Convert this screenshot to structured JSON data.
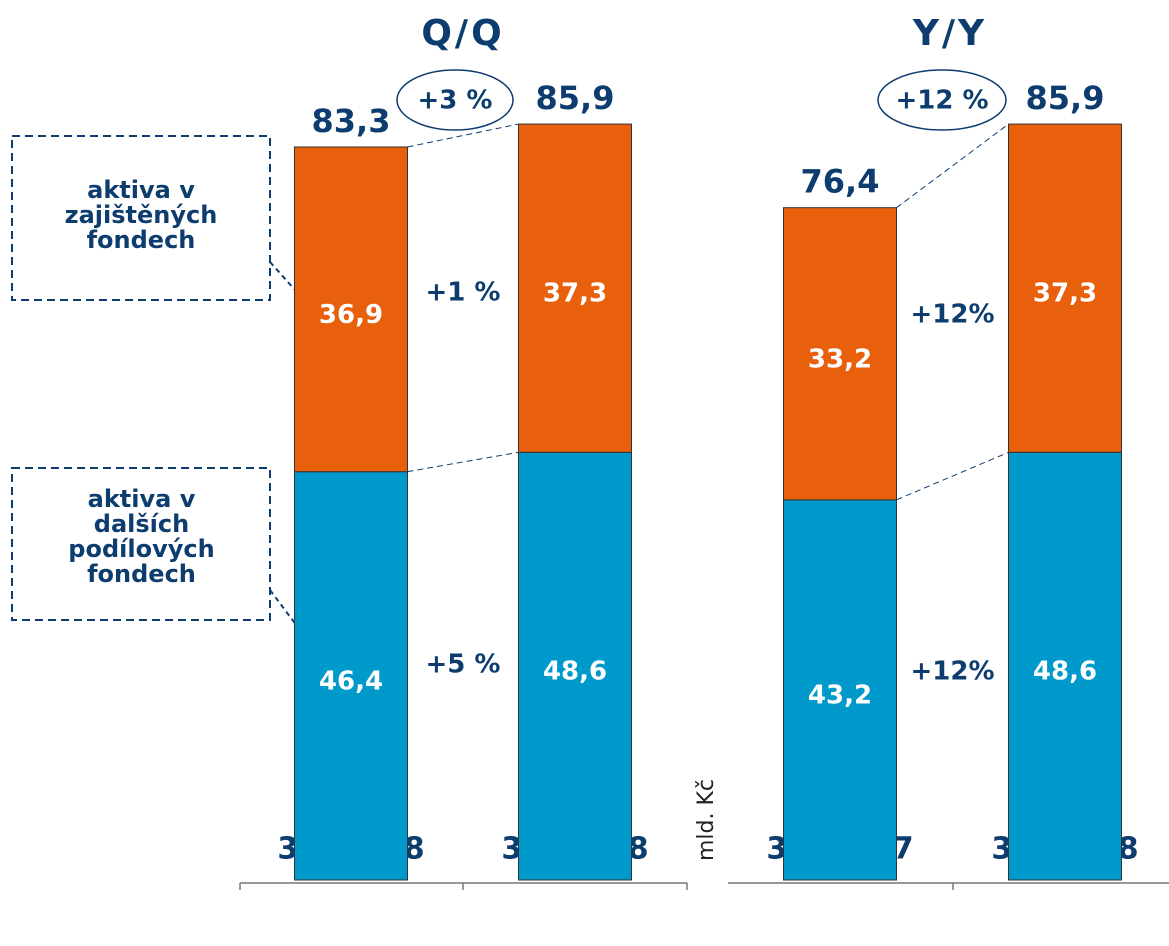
{
  "chart_data": [
    {
      "type": "stacked_bar",
      "title": "Q/Q",
      "categories": [
        "31/03/08",
        "30/06/08"
      ],
      "series": [
        {
          "name": "aktiva v dalších podílových fondech",
          "color": "#0099cc",
          "values": [
            46.4,
            48.6
          ],
          "value_labels": [
            "46,4",
            "48,6"
          ]
        },
        {
          "name": "aktiva v zajištěných fondech",
          "color": "#e8600c",
          "values": [
            36.9,
            37.3
          ],
          "value_labels": [
            "36,9",
            "37,3"
          ]
        }
      ],
      "totals": [
        83.3,
        85.9
      ],
      "total_labels": [
        "83,3",
        "85,9"
      ],
      "change_label": "+3 %",
      "segment_change_labels": [
        "+5 %",
        "+1 %"
      ]
    },
    {
      "type": "stacked_bar",
      "title": "Y/Y",
      "categories": [
        "30/06/07",
        "30/06/08"
      ],
      "series": [
        {
          "color": "#0099cc",
          "values": [
            43.2,
            48.6
          ],
          "value_labels": [
            "43,2",
            "48,6"
          ]
        },
        {
          "color": "#e8600c",
          "values": [
            33.2,
            37.3
          ],
          "value_labels": [
            "33,2",
            "37,3"
          ]
        }
      ],
      "totals": [
        76.4,
        85.9
      ],
      "total_labels": [
        "76,4",
        "85,9"
      ],
      "change_label": "+12 %",
      "segment_change_labels": [
        "+12%",
        "+12%"
      ],
      "y_label": "mld. Kč"
    }
  ]
}
